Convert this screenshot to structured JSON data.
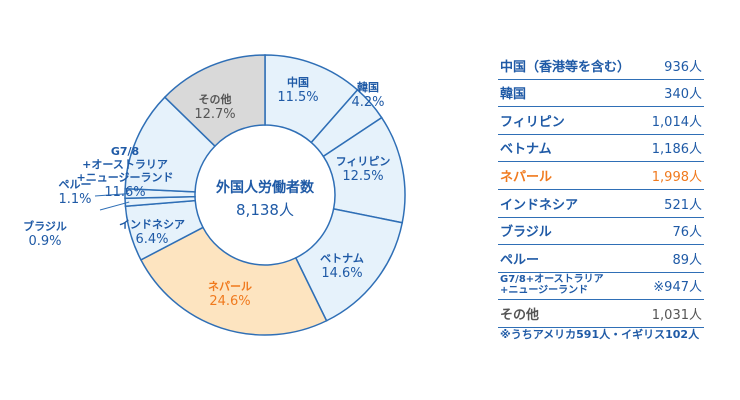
{
  "chart_data": {
    "type": "pie",
    "variant": "donut",
    "center_title": "外国人労働者数",
    "center_total": "8,138人",
    "slices": [
      {
        "label": "中国",
        "pct": 11.5,
        "pct_text": "11.5%",
        "fill": "#e6f2fb",
        "text_color": "#1f5aa6"
      },
      {
        "label": "韓国",
        "pct": 4.2,
        "pct_text": "4.2%",
        "fill": "#e6f2fb",
        "text_color": "#1f5aa6"
      },
      {
        "label": "フィリピン",
        "pct": 12.5,
        "pct_text": "12.5%",
        "fill": "#e6f2fb",
        "text_color": "#1f5aa6"
      },
      {
        "label": "ベトナム",
        "pct": 14.6,
        "pct_text": "14.6%",
        "fill": "#e6f2fb",
        "text_color": "#1f5aa6"
      },
      {
        "label": "ネパール",
        "pct": 24.6,
        "pct_text": "24.6%",
        "fill": "#fde4c0",
        "text_color": "#f07a1e"
      },
      {
        "label": "インドネシア",
        "pct": 6.4,
        "pct_text": "6.4%",
        "fill": "#e6f2fb",
        "text_color": "#1f5aa6"
      },
      {
        "label": "ブラジル",
        "pct": 0.9,
        "pct_text": "0.9%",
        "fill": "#e6f2fb",
        "text_color": "#1f5aa6"
      },
      {
        "label": "ペルー",
        "pct": 1.1,
        "pct_text": "1.1%",
        "fill": "#e6f2fb",
        "text_color": "#1f5aa6"
      },
      {
        "label_lines": [
          "G7/8",
          "+オーストラリア",
          "+ニュージーランド"
        ],
        "pct": 11.6,
        "pct_text": "11.6%",
        "fill": "#e6f2fb",
        "text_color": "#1f5aa6"
      },
      {
        "label": "その他",
        "pct": 12.7,
        "pct_text": "12.7%",
        "fill": "#d9d9d9",
        "text_color": "#555555"
      }
    ],
    "border_color": "#2f6fb6"
  },
  "table": {
    "rows": [
      {
        "name": "中国（香港等を含む）",
        "value": "936人"
      },
      {
        "name": "韓国",
        "value": "340人"
      },
      {
        "name": "フィリピン",
        "value": "1,014人"
      },
      {
        "name": "ベトナム",
        "value": "1,186人"
      },
      {
        "name": "ネパール",
        "value": "1,998人"
      },
      {
        "name": "インドネシア",
        "value": "521人"
      },
      {
        "name": "ブラジル",
        "value": "76人"
      },
      {
        "name": "ペルー",
        "value": "89人"
      },
      {
        "name": "G7/8+オーストラリア\n+ニュージーランド",
        "value": "※947人"
      },
      {
        "name": "その他",
        "value": "1,031人"
      }
    ],
    "footnote": "※うちアメリカ591人・イギリス102人"
  }
}
